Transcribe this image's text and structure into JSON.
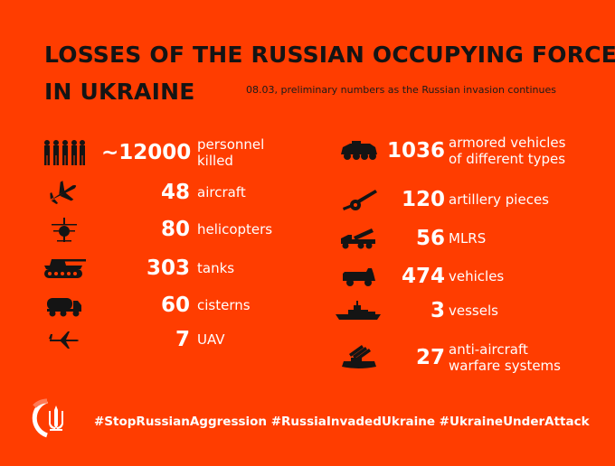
{
  "title": {
    "line1": "LOSSES OF THE RUSSIAN OCCUPYING FORCES",
    "line2": "IN UKRAINE"
  },
  "subtitle": "08.03, preliminary numbers as the Russian invasion continues",
  "left_stats": [
    {
      "icon": "soldiers-icon",
      "value": "~12000",
      "label_line1": "personnel",
      "label_line2": "killed"
    },
    {
      "icon": "aircraft-icon",
      "value": "48",
      "label_line1": "aircraft",
      "label_line2": ""
    },
    {
      "icon": "helicopter-icon",
      "value": "80",
      "label_line1": "helicopters",
      "label_line2": ""
    },
    {
      "icon": "tank-icon",
      "value": "303",
      "label_line1": "tanks",
      "label_line2": ""
    },
    {
      "icon": "cistern-icon",
      "value": "60",
      "label_line1": "cisterns",
      "label_line2": ""
    },
    {
      "icon": "uav-icon",
      "value": "7",
      "label_line1": "UAV",
      "label_line2": ""
    }
  ],
  "right_stats": [
    {
      "icon": "armored-vehicle-icon",
      "value": "1036",
      "label_line1": "armored vehicles",
      "label_line2": "of different types"
    },
    {
      "icon": "artillery-icon",
      "value": "120",
      "label_line1": "artillery pieces",
      "label_line2": ""
    },
    {
      "icon": "mlrs-icon",
      "value": "56",
      "label_line1": "MLRS",
      "label_line2": ""
    },
    {
      "icon": "vehicle-icon",
      "value": "474",
      "label_line1": "vehicles",
      "label_line2": ""
    },
    {
      "icon": "vessel-icon",
      "value": "3",
      "label_line1": "vessels",
      "label_line2": ""
    },
    {
      "icon": "anti-aircraft-icon",
      "value": "27",
      "label_line1": "anti-aircraft",
      "label_line2": "warfare systems"
    }
  ],
  "hashtags": "#StopRussianAggression #RussiaInvadedUkraine #UkraineUnderAttack",
  "colors": {
    "background": "#ff3d00",
    "title": "#141414",
    "text": "#ffffff",
    "icon": "#141414"
  }
}
